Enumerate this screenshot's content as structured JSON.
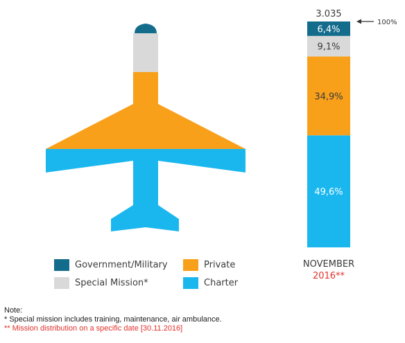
{
  "chart_data": {
    "type": "bar",
    "stacked": true,
    "categories": [
      "NOVEMBER 2016**"
    ],
    "total": "3.035",
    "top_marker": "100%",
    "series": [
      {
        "name": "Charter",
        "value": 49.6,
        "label": "49,6%",
        "color": "#1ab7ef"
      },
      {
        "name": "Private",
        "value": 34.9,
        "label": "34,9%",
        "color": "#f9a01b"
      },
      {
        "name": "Special Mission*",
        "value": 9.1,
        "label": "9,1%",
        "color": "#d9d9d9"
      },
      {
        "name": "Government/Military",
        "value": 6.4,
        "label": "6,4%",
        "color": "#146c8c"
      }
    ],
    "category_label_line1": "NOVEMBER",
    "category_label_line2": "2016**"
  },
  "legend": {
    "items": [
      {
        "label": "Government/Military",
        "color": "#146c8c"
      },
      {
        "label": "Private",
        "color": "#f9a01b"
      },
      {
        "label": "Special Mission*",
        "color": "#d9d9d9"
      },
      {
        "label": "Charter",
        "color": "#1ab7ef"
      }
    ]
  },
  "notes": {
    "heading": "Note:",
    "line1": "* Special mission includes training, maintenance, air ambulance.",
    "line2": "** Mission distribution on a specific date [30.11.2016]"
  }
}
